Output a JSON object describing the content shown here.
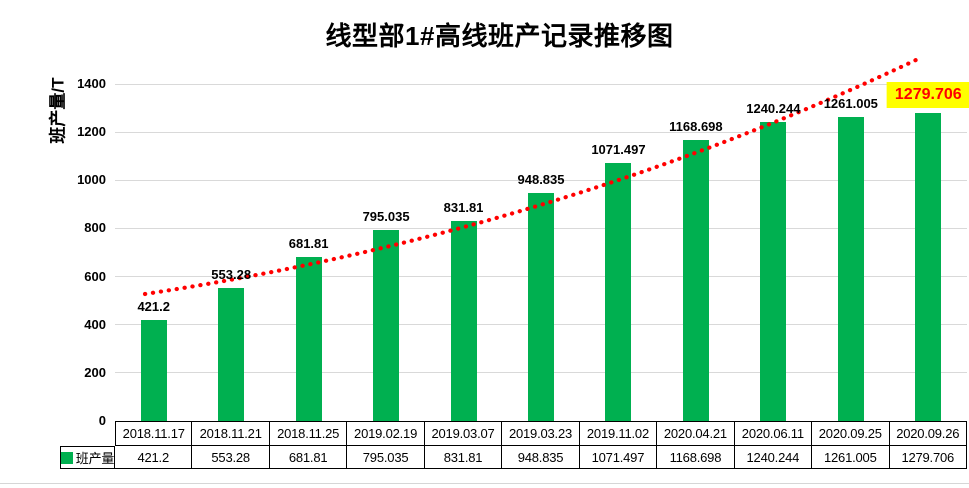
{
  "chart_data": {
    "type": "bar",
    "title": "线型部1#高线班产记录推移图",
    "ylabel": "班产量/T",
    "series_name": "班产量",
    "categories": [
      "2018.11.17",
      "2018.11.21",
      "2018.11.25",
      "2019.02.19",
      "2019.03.07",
      "2019.03.23",
      "2019.11.02",
      "2020.04.21",
      "2020.06.11",
      "2020.09.25",
      "2020.09.26"
    ],
    "values": [
      421.2,
      553.28,
      681.81,
      795.035,
      831.81,
      948.835,
      1071.497,
      1168.698,
      1240.244,
      1261.005,
      1279.706
    ],
    "value_labels": [
      "421.2",
      "553.28",
      "681.81",
      "795.035",
      "831.81",
      "948.835",
      "1071.497",
      "1168.698",
      "1240.244",
      "1261.005",
      "1279.706"
    ],
    "yticks": [
      0,
      200,
      400,
      600,
      800,
      1000,
      1200,
      1400
    ],
    "ylim": [
      0,
      1500
    ],
    "bar_color": "#00B050",
    "gridline_color": "#D9D9D9",
    "grid": "horizontal-only",
    "legend_position": "data-table-left",
    "trendline": {
      "style": "dotted",
      "color": "#FF0000"
    },
    "highlight_label": {
      "index": 10,
      "background": "#FFFF00",
      "color": "#FF0000"
    },
    "data_table_shown": true
  }
}
